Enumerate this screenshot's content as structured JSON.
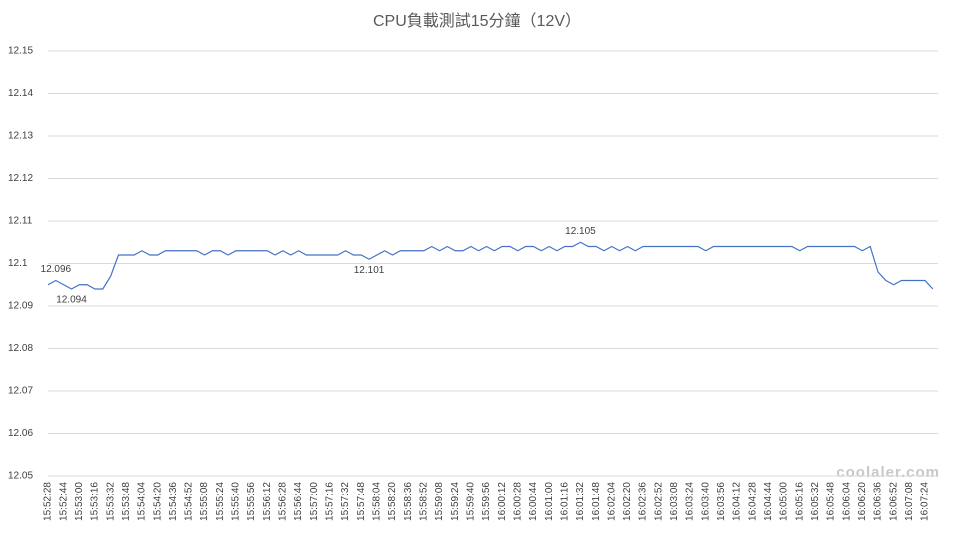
{
  "chart_data": {
    "type": "line",
    "title": "CPU負載測試15分鐘（12V）",
    "watermark": "coolaler.com",
    "categories": [
      "15:52:28",
      null,
      "15:52:44",
      null,
      "15:53:00",
      null,
      "15:53:16",
      null,
      "15:53:32",
      null,
      "15:53:48",
      null,
      "15:54:04",
      null,
      "15:54:20",
      null,
      "15:54:36",
      null,
      "15:54:52",
      null,
      "15:55:08",
      null,
      "15:55:24",
      null,
      "15:55:40",
      null,
      "15:55:56",
      null,
      "15:56:12",
      null,
      "15:56:28",
      null,
      "15:56:44",
      null,
      "15:57:00",
      null,
      "15:57:16",
      null,
      "15:57:32",
      null,
      "15:57:48",
      null,
      "15:58:04",
      null,
      "15:58:20",
      null,
      "15:58:36",
      null,
      "15:58:52",
      null,
      "15:59:08",
      null,
      "15:59:24",
      null,
      "15:59:40",
      null,
      "15:59:56",
      null,
      "16:00:12",
      null,
      "16:00:28",
      null,
      "16:00:44",
      null,
      "16:01:00",
      null,
      "16:01:16",
      null,
      "16:01:32",
      null,
      "16:01:48",
      null,
      "16:02:04",
      null,
      "16:02:20",
      null,
      "16:02:36",
      null,
      "16:02:52",
      null,
      "16:03:08",
      null,
      "16:03:24",
      null,
      "16:03:40",
      null,
      "16:03:56",
      null,
      "16:04:12",
      null,
      "16:04:28",
      null,
      "16:04:44",
      null,
      "16:05:00",
      null,
      "16:05:16",
      null,
      "16:05:32",
      null,
      "16:05:48",
      null,
      "16:06:04",
      null,
      "16:06:20",
      null,
      "16:06:36",
      null,
      "16:06:52",
      null,
      "16:07:08",
      null,
      "16:07:24",
      null
    ],
    "series": [
      {
        "color": "#4472c4",
        "values": [
          12.095,
          12.096,
          12.095,
          12.094,
          12.095,
          12.095,
          12.094,
          12.094,
          12.097,
          12.102,
          12.102,
          12.102,
          12.103,
          12.102,
          12.102,
          12.103,
          12.103,
          12.103,
          12.103,
          12.103,
          12.102,
          12.103,
          12.103,
          12.102,
          12.103,
          12.103,
          12.103,
          12.103,
          12.103,
          12.102,
          12.103,
          12.102,
          12.103,
          12.102,
          12.102,
          12.102,
          12.102,
          12.102,
          12.103,
          12.102,
          12.102,
          12.101,
          12.102,
          12.103,
          12.102,
          12.103,
          12.103,
          12.103,
          12.103,
          12.104,
          12.103,
          12.104,
          12.103,
          12.103,
          12.104,
          12.103,
          12.104,
          12.103,
          12.104,
          12.104,
          12.103,
          12.104,
          12.104,
          12.103,
          12.104,
          12.103,
          12.104,
          12.104,
          12.105,
          12.104,
          12.104,
          12.103,
          12.104,
          12.103,
          12.104,
          12.103,
          12.104,
          12.104,
          12.104,
          12.104,
          12.104,
          12.104,
          12.104,
          12.104,
          12.103,
          12.104,
          12.104,
          12.104,
          12.104,
          12.104,
          12.104,
          12.104,
          12.104,
          12.104,
          12.104,
          12.104,
          12.103,
          12.104,
          12.104,
          12.104,
          12.104,
          12.104,
          12.104,
          12.104,
          12.103,
          12.104,
          12.098,
          12.096,
          12.095,
          12.096,
          12.096,
          12.096,
          12.096,
          12.094
        ],
        "value_labels": [
          null,
          "12.096",
          null,
          "12.094",
          null,
          null,
          null,
          null,
          null,
          null,
          null,
          null,
          null,
          null,
          null,
          null,
          null,
          null,
          null,
          null,
          null,
          null,
          null,
          null,
          null,
          null,
          null,
          null,
          null,
          null,
          null,
          null,
          null,
          null,
          null,
          null,
          null,
          null,
          null,
          null,
          null,
          "12.101",
          null,
          null,
          null,
          null,
          null,
          null,
          null,
          null,
          null,
          null,
          null,
          null,
          null,
          null,
          null,
          null,
          null,
          null,
          null,
          null,
          null,
          null,
          null,
          null,
          null,
          null,
          "12.105",
          null,
          null,
          null,
          null,
          null,
          null,
          null,
          null,
          null,
          null,
          null,
          null,
          null,
          null,
          null,
          null,
          null,
          null,
          null,
          null,
          null,
          null,
          null,
          null,
          null,
          null,
          null,
          null,
          null,
          null,
          null,
          null,
          null,
          null,
          null,
          null,
          null,
          null,
          null,
          null,
          null,
          null,
          null,
          null,
          null
        ]
      }
    ],
    "ylim": [
      12.05,
      12.15
    ],
    "yticks": [
      12.05,
      12.06,
      12.07,
      12.08,
      12.09,
      12.1,
      12.11,
      12.12,
      12.13,
      12.14,
      12.15
    ],
    "grid": true
  }
}
